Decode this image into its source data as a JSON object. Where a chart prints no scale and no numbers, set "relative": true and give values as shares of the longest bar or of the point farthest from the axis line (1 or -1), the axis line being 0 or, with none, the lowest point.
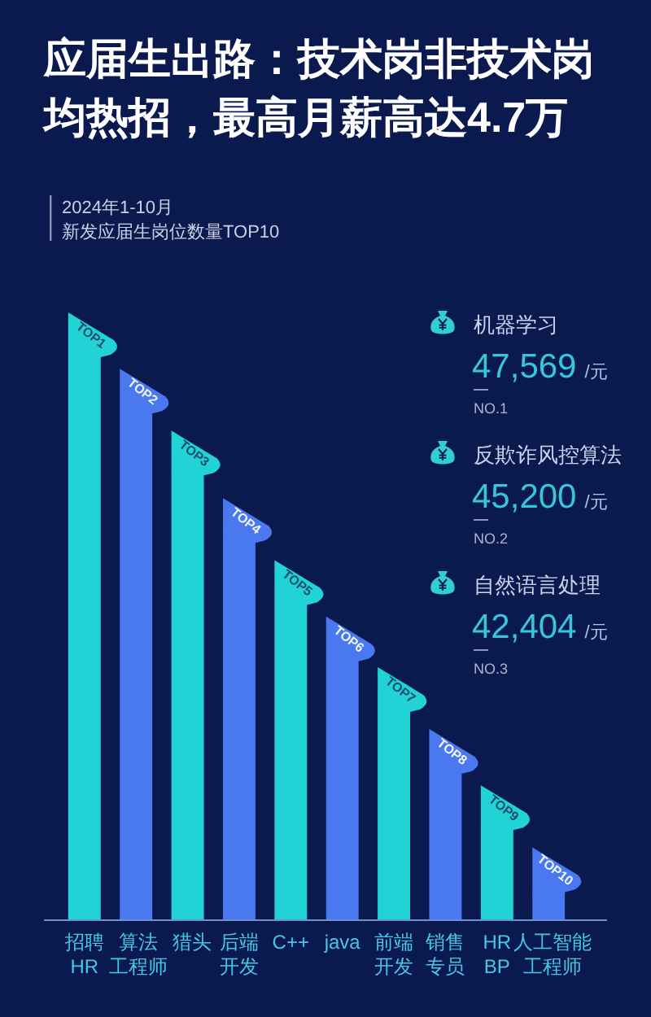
{
  "chart_data": [
    {
      "type": "bar",
      "title": "应届生出路：技术岗非技术岗均热招，最高月薪高达4.7万",
      "subtitle": "新发应届生岗位数量TOP10",
      "categories": [
        "招聘HR",
        "算法工程师",
        "猎头",
        "后端开发",
        "C++",
        "java",
        "前端开发",
        "销售专员",
        "HR BP",
        "人工智能工程师"
      ],
      "values": [
        1,
        0.9,
        0.79,
        0.67,
        0.56,
        0.46,
        0.37,
        0.26,
        0.16,
        0.05
      ],
      "colors": [
        "#22d3d6",
        "#4a78ee",
        "#22d3d6",
        "#4a78ee",
        "#22d3d6",
        "#4a78ee",
        "#22d3d6",
        "#4a78ee",
        "#22d3d6",
        "#4a78ee"
      ],
      "annotations": [
        "2024年1-10月",
        "TOP1",
        "TOP2",
        "TOP3",
        "TOP4",
        "TOP5",
        "TOP6",
        "TOP7",
        "TOP8",
        "TOP9",
        "TOP10"
      ],
      "relative": true
    },
    {
      "type": "other",
      "annotations": [
        "机器学习",
        "47,569 /元",
        "NO.1",
        "反欺诈风控算法",
        "45,200 /元",
        "NO.2",
        "自然语言处理",
        "42,404 /元",
        "NO.3"
      ]
    }
  ]
}
